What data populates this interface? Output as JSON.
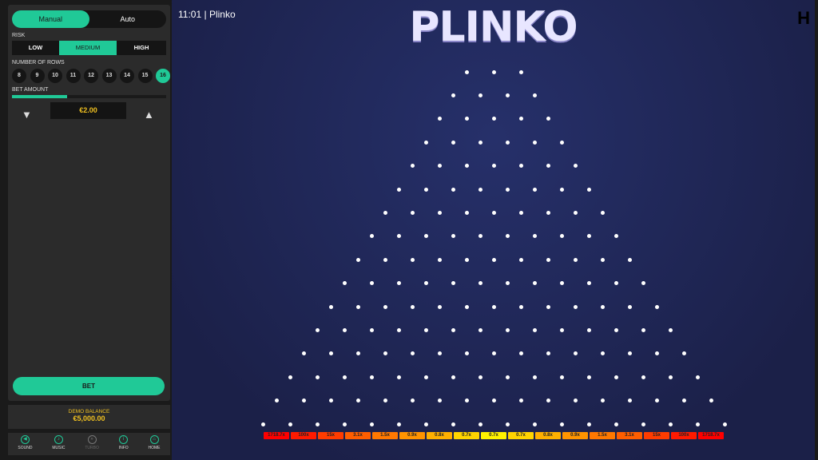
{
  "panel": {
    "modes": [
      "Manual",
      "Auto"
    ],
    "active_mode": "Manual",
    "risk_label": "RISK",
    "risks": [
      "LOW",
      "MEDIUM",
      "HIGH"
    ],
    "active_risk": "MEDIUM",
    "rows_label": "NUMBER OF ROWS",
    "rows": [
      "8",
      "9",
      "10",
      "11",
      "12",
      "13",
      "14",
      "15",
      "16"
    ],
    "active_rows": "16",
    "bet_label": "BET AMOUNT",
    "bet_slider_fraction": 0.36,
    "bet_amount": "€2.00",
    "bet_button": "BET"
  },
  "balance": {
    "label": "DEMO BALANCE",
    "value": "€5,000.00"
  },
  "footer": [
    {
      "label": "SOUND",
      "icon": "sound-icon"
    },
    {
      "label": "MUSIC",
      "icon": "music-icon"
    },
    {
      "label": "TURBO",
      "icon": "turbo-icon"
    },
    {
      "label": "INFO",
      "icon": "info-icon"
    },
    {
      "label": "HOME",
      "icon": "home-icon"
    }
  ],
  "header": {
    "time": "11:01",
    "title": "Plinko",
    "logo": "PLINKO"
  },
  "board": {
    "rows": 16,
    "multipliers": [
      "1718.7x",
      "100x",
      "15x",
      "3.1x",
      "1.5x",
      "0.9x",
      "0.8x",
      "0.7x",
      "0.7x",
      "0.7x",
      "0.8x",
      "0.9x",
      "1.5x",
      "3.1x",
      "15x",
      "100x",
      "1718.7x"
    ],
    "slot_colors": [
      "#ff0000",
      "#ff1a00",
      "#ff3c00",
      "#ff5e00",
      "#ff7800",
      "#ff9400",
      "#ffb000",
      "#ffd400",
      "#fff200",
      "#ffd400",
      "#ffb000",
      "#ff9400",
      "#ff7800",
      "#ff5e00",
      "#ff3c00",
      "#ff1a00",
      "#ff0000"
    ]
  },
  "colors": {
    "accent": "#20c997",
    "gold": "#f0c020"
  }
}
